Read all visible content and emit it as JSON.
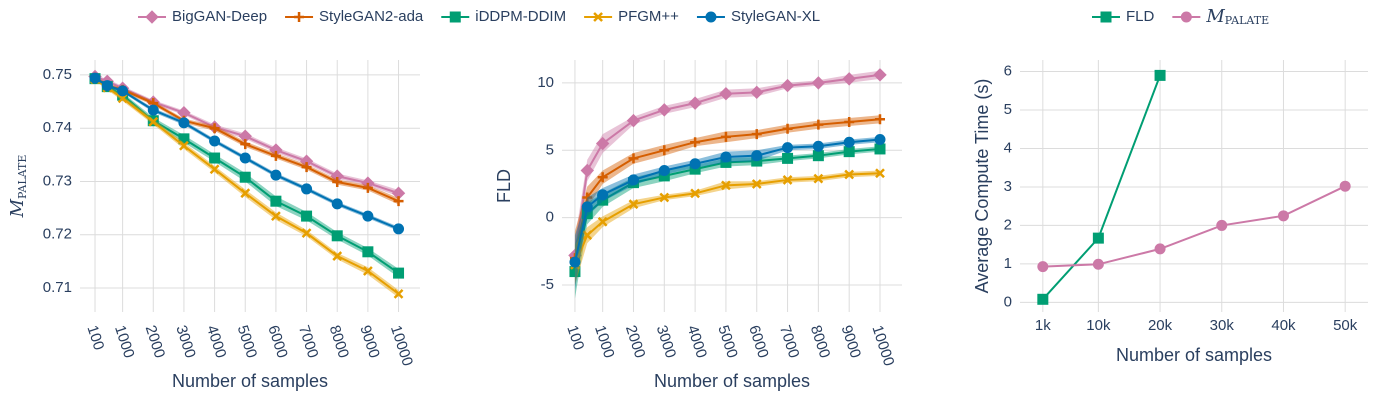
{
  "chart_data": [
    {
      "type": "line",
      "x_label": "Number of samples",
      "y_label": "M",
      "y_label_sub": "PALATE",
      "legend": "top",
      "x": [
        100,
        500,
        1000,
        2000,
        3000,
        4000,
        5000,
        6000,
        7000,
        8000,
        9000,
        10000
      ],
      "xlim": [
        -390,
        10700
      ],
      "xticks": [
        100,
        1000,
        2000,
        3000,
        4000,
        5000,
        6000,
        7000,
        8000,
        9000,
        10000
      ],
      "ylim": [
        0.7055,
        0.7528
      ],
      "yticks": [
        0.71,
        0.72,
        0.73,
        0.74,
        0.75
      ],
      "grid": true,
      "series": [
        {
          "name": "BigGAN-Deep",
          "color": "#cc79a7",
          "marker": "diamond",
          "values": [
            0.7497,
            0.7488,
            0.7475,
            0.7449,
            0.7429,
            0.7402,
            0.7385,
            0.7359,
            0.7338,
            0.731,
            0.7297,
            0.7278
          ],
          "errors": [
            0.0003,
            0.0004,
            0.0004,
            0.0004,
            0.0004,
            0.0005,
            0.0005,
            0.0005,
            0.0005,
            0.0005,
            0.0005,
            0.0006
          ]
        },
        {
          "name": "StyleGAN2-ada",
          "color": "#d55e00",
          "marker": "cross",
          "values": [
            0.7495,
            0.748,
            0.7472,
            0.7447,
            0.7414,
            0.74,
            0.737,
            0.7348,
            0.7327,
            0.7299,
            0.7288,
            0.7263
          ],
          "errors": [
            0.0003,
            0.0004,
            0.0004,
            0.0004,
            0.0004,
            0.0005,
            0.0005,
            0.0005,
            0.0005,
            0.0005,
            0.0005,
            0.0006
          ]
        },
        {
          "name": "iDDPM-DDIM",
          "color": "#009e73",
          "marker": "square",
          "values": [
            0.7493,
            0.7478,
            0.7462,
            0.7414,
            0.738,
            0.7344,
            0.7308,
            0.7263,
            0.7235,
            0.7198,
            0.7168,
            0.7128
          ],
          "errors": [
            0.0003,
            0.0004,
            0.0005,
            0.0006,
            0.0007,
            0.0007,
            0.0008,
            0.0009,
            0.0008,
            0.0007,
            0.0007,
            0.0008
          ]
        },
        {
          "name": "PFGM++",
          "color": "#e69f00",
          "marker": "x",
          "values": [
            0.7492,
            0.7476,
            0.7456,
            0.7412,
            0.7367,
            0.7323,
            0.7278,
            0.7235,
            0.7203,
            0.716,
            0.7132,
            0.7089
          ],
          "errors": [
            0.0003,
            0.0004,
            0.0005,
            0.0005,
            0.0006,
            0.0006,
            0.0007,
            0.0007,
            0.0006,
            0.0006,
            0.0007,
            0.0007
          ]
        },
        {
          "name": "StyleGAN-XL",
          "color": "#0072b2",
          "marker": "circle",
          "values": [
            0.7494,
            0.748,
            0.747,
            0.7434,
            0.741,
            0.7376,
            0.7344,
            0.7312,
            0.7286,
            0.7258,
            0.7235,
            0.7211
          ],
          "errors": [
            0.0003,
            0.0003,
            0.0003,
            0.0004,
            0.0004,
            0.0004,
            0.0004,
            0.0004,
            0.0004,
            0.0004,
            0.0004,
            0.0004
          ]
        }
      ]
    },
    {
      "type": "line",
      "x_label": "Number of samples",
      "y_label": "FLD",
      "x": [
        100,
        500,
        1000,
        2000,
        3000,
        4000,
        5000,
        6000,
        7000,
        8000,
        9000,
        10000
      ],
      "xlim": [
        -320,
        10714
      ],
      "xticks": [
        100,
        1000,
        2000,
        3000,
        4000,
        5000,
        6000,
        7000,
        8000,
        9000,
        10000
      ],
      "ylim": [
        -7,
        11.7
      ],
      "yticks": [
        -5,
        0,
        5,
        10
      ],
      "grid": true,
      "series": [
        {
          "color": "#cc79a7",
          "marker": "diamond",
          "values": [
            -2.8,
            3.5,
            5.5,
            7.2,
            8.0,
            8.5,
            9.2,
            9.3,
            9.8,
            10.0,
            10.3,
            10.6
          ],
          "errors": [
            1.2,
            0.8,
            0.7,
            0.3,
            0.3,
            0.3,
            0.3,
            0.3,
            0.2,
            0.2,
            0.3,
            0.3
          ]
        },
        {
          "color": "#d55e00",
          "marker": "cross",
          "values": [
            -3.0,
            1.5,
            3.0,
            4.4,
            5.0,
            5.6,
            6.0,
            6.2,
            6.6,
            6.9,
            7.1,
            7.3
          ],
          "errors": [
            2.0,
            0.8,
            0.5,
            0.4,
            0.4,
            0.3,
            0.4,
            0.3,
            0.3,
            0.3,
            0.3,
            0.3
          ]
        },
        {
          "color": "#009e73",
          "marker": "square",
          "values": [
            -4.0,
            0.3,
            1.3,
            2.6,
            3.1,
            3.6,
            4.1,
            4.2,
            4.4,
            4.6,
            4.9,
            5.1
          ],
          "errors": [
            2.0,
            0.8,
            0.5,
            0.4,
            0.4,
            0.3,
            0.3,
            0.3,
            0.2,
            0.2,
            0.2,
            0.2
          ]
        },
        {
          "color": "#e69f00",
          "marker": "x",
          "values": [
            -3.5,
            -1.3,
            -0.3,
            1.0,
            1.5,
            1.8,
            2.4,
            2.5,
            2.8,
            2.9,
            3.2,
            3.3
          ],
          "errors": [
            1.5,
            0.6,
            0.4,
            0.3,
            0.2,
            0.2,
            0.3,
            0.2,
            0.2,
            0.2,
            0.2,
            0.2
          ]
        },
        {
          "color": "#0072b2",
          "marker": "circle",
          "values": [
            -3.3,
            0.8,
            1.7,
            2.8,
            3.5,
            4.0,
            4.5,
            4.6,
            5.2,
            5.3,
            5.6,
            5.8
          ],
          "errors": [
            2.0,
            0.7,
            0.5,
            0.4,
            0.3,
            0.3,
            0.4,
            0.4,
            0.2,
            0.2,
            0.2,
            0.2
          ]
        }
      ]
    },
    {
      "type": "line",
      "x_label": "Number of samples",
      "y_label": "Average Compute Time (s)",
      "legend": "top right",
      "xlim": [
        -2700,
        53700
      ],
      "xticks": [
        {
          "value": 1000,
          "label": "1k"
        },
        {
          "value": 10000,
          "label": "10k"
        },
        {
          "value": 20000,
          "label": "20k"
        },
        {
          "value": 30000,
          "label": "30k"
        },
        {
          "value": 40000,
          "label": "40k"
        },
        {
          "value": 50000,
          "label": "50k"
        }
      ],
      "ylim": [
        -0.25,
        6.3
      ],
      "yticks": [
        0,
        1,
        2,
        3,
        4,
        5,
        6
      ],
      "grid": true,
      "series": [
        {
          "name": "FLD",
          "color": "#009e73",
          "marker": "square",
          "x": [
            1000,
            10000,
            20000
          ],
          "values": [
            0.08,
            1.67,
            5.9
          ]
        },
        {
          "name": "M",
          "name_sub": "PALATE",
          "color": "#cc79a7",
          "marker": "circle",
          "x": [
            1000,
            10000,
            20000,
            30000,
            40000,
            50000
          ],
          "values": [
            0.93,
            0.99,
            1.39,
            2.0,
            2.25,
            3.02
          ]
        }
      ]
    }
  ]
}
